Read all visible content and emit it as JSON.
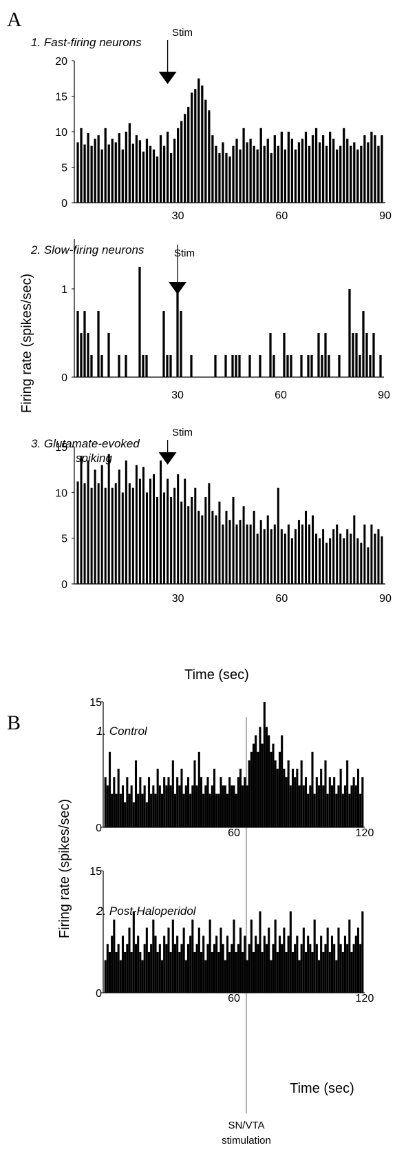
{
  "panels": {
    "a": {
      "letter": "A",
      "ylabel": "Firing rate (spikes/sec)",
      "xlabel": "Time (sec)",
      "stim_label": "Stim"
    },
    "b": {
      "letter": "B",
      "ylabel": "Firing rate (spikes/sec)",
      "xlabel": "Time (sec)",
      "stim_note_line1": "SN/VTA",
      "stim_note_line2": "stimulation"
    }
  },
  "chart_data": [
    {
      "type": "bar",
      "title": "1. Fast-firing neurons",
      "annotation": "Stim",
      "xlim": [
        0,
        90
      ],
      "ylim": [
        0,
        20
      ],
      "xticks": [
        "30",
        "60",
        "90"
      ],
      "yticks": [
        "0",
        "5",
        "10",
        "15",
        "20"
      ],
      "stim_x": 27,
      "x": [
        1,
        2,
        3,
        4,
        5,
        6,
        7,
        8,
        9,
        10,
        11,
        12,
        13,
        14,
        15,
        16,
        17,
        18,
        19,
        20,
        21,
        22,
        23,
        24,
        25,
        26,
        27,
        28,
        29,
        30,
        31,
        32,
        33,
        34,
        35,
        36,
        37,
        38,
        39,
        40,
        41,
        42,
        43,
        44,
        45,
        46,
        47,
        48,
        49,
        50,
        51,
        52,
        53,
        54,
        55,
        56,
        57,
        58,
        59,
        60,
        61,
        62,
        63,
        64,
        65,
        66,
        67,
        68,
        69,
        70,
        71,
        72,
        73,
        74,
        75,
        76,
        77,
        78,
        79,
        80,
        81,
        82,
        83,
        84,
        85,
        86,
        87,
        88,
        89
      ],
      "values": [
        8.5,
        10.5,
        8.2,
        9.8,
        8.0,
        9.0,
        9.5,
        7.5,
        10.5,
        8.2,
        9.0,
        8.5,
        9.8,
        7.5,
        10.0,
        11.2,
        8.3,
        9.5,
        8.8,
        7.2,
        9.0,
        8.0,
        7.5,
        6.5,
        9.5,
        8.0,
        10.0,
        7.0,
        9.0,
        10.5,
        11.5,
        12.5,
        13.5,
        15.5,
        16.0,
        17.5,
        16.5,
        14.5,
        13.0,
        9.5,
        8.0,
        7.0,
        8.5,
        7.0,
        6.5,
        8.0,
        9.0,
        7.5,
        10.5,
        8.5,
        9.0,
        8.0,
        7.5,
        10.5,
        8.0,
        9.0,
        7.0,
        9.5,
        8.0,
        10.0,
        7.5,
        10.0,
        9.0,
        7.5,
        8.5,
        9.0,
        10.0,
        8.0,
        9.5,
        10.5,
        8.5,
        9.5,
        8.0,
        10.0,
        9.0,
        7.5,
        8.0,
        10.5,
        9.0,
        8.0,
        8.5,
        7.5,
        8.0,
        9.5,
        8.5,
        10.0,
        9.5,
        8.0,
        9.5
      ]
    },
    {
      "type": "bar",
      "title": "2. Slow-firing neurons",
      "annotation": "Stim",
      "xlim": [
        0,
        90
      ],
      "ylim": [
        0,
        1.5
      ],
      "xticks": [
        "30",
        "60",
        "90"
      ],
      "yticks": [
        "0",
        "1"
      ],
      "stim_x": 30,
      "x": [
        1,
        2,
        3,
        4,
        5,
        6,
        7,
        8,
        9,
        10,
        11,
        12,
        13,
        14,
        15,
        16,
        17,
        18,
        19,
        20,
        21,
        22,
        23,
        24,
        25,
        26,
        27,
        28,
        29,
        30,
        31,
        32,
        33,
        34,
        35,
        36,
        37,
        38,
        39,
        40,
        41,
        42,
        43,
        44,
        45,
        46,
        47,
        48,
        49,
        50,
        51,
        52,
        53,
        54,
        55,
        56,
        57,
        58,
        59,
        60,
        61,
        62,
        63,
        64,
        65,
        66,
        67,
        68,
        69,
        70,
        71,
        72,
        73,
        74,
        75,
        76,
        77,
        78,
        79,
        80,
        81,
        82,
        83,
        84,
        85,
        86,
        87,
        88,
        89
      ],
      "values": [
        0.75,
        0.5,
        0.75,
        0.5,
        0.25,
        0.0,
        0.75,
        0.25,
        0.0,
        0.5,
        0.0,
        0.0,
        0.25,
        0.0,
        0.25,
        0.0,
        0.0,
        0.0,
        1.25,
        0.25,
        0.25,
        0.0,
        0.0,
        0.0,
        0.0,
        0.75,
        0.25,
        0.25,
        0.0,
        1.0,
        0.75,
        0.0,
        0.0,
        0.25,
        0.0,
        0.0,
        0.0,
        0.0,
        0.0,
        0.0,
        0.25,
        0.0,
        0.0,
        0.25,
        0.0,
        0.25,
        0.25,
        0.25,
        0.0,
        0.0,
        0.25,
        0.0,
        0.0,
        0.25,
        0.0,
        0.0,
        0.5,
        0.25,
        0.0,
        0.0,
        0.5,
        0.25,
        0.25,
        0.0,
        0.0,
        0.25,
        0.0,
        0.25,
        0.25,
        0.0,
        0.5,
        0.25,
        0.5,
        0.25,
        0.0,
        0.0,
        0.25,
        0.0,
        0.0,
        1.0,
        0.5,
        0.5,
        0.25,
        0.75,
        0.5,
        0.25,
        0.5,
        0.0,
        0.25
      ]
    },
    {
      "type": "bar",
      "title": "3. Glutamate-evoked spiking",
      "annotation": "Stim",
      "xlim": [
        0,
        90
      ],
      "ylim": [
        0,
        15
      ],
      "xticks": [
        "30",
        "60",
        "90"
      ],
      "yticks": [
        "0",
        "5",
        "10",
        "15"
      ],
      "stim_x": 27,
      "x": [
        1,
        2,
        3,
        4,
        5,
        6,
        7,
        8,
        9,
        10,
        11,
        12,
        13,
        14,
        15,
        16,
        17,
        18,
        19,
        20,
        21,
        22,
        23,
        24,
        25,
        26,
        27,
        28,
        29,
        30,
        31,
        32,
        33,
        34,
        35,
        36,
        37,
        38,
        39,
        40,
        41,
        42,
        43,
        44,
        45,
        46,
        47,
        48,
        49,
        50,
        51,
        52,
        53,
        54,
        55,
        56,
        57,
        58,
        59,
        60,
        61,
        62,
        63,
        64,
        65,
        66,
        67,
        68,
        69,
        70,
        71,
        72,
        73,
        74,
        75,
        76,
        77,
        78,
        79,
        80,
        81,
        82,
        83,
        84,
        85,
        86,
        87,
        88,
        89
      ],
      "values": [
        11.2,
        14.0,
        11.0,
        13.5,
        10.5,
        12.5,
        11.0,
        13.0,
        10.5,
        14.2,
        10.5,
        11.0,
        12.5,
        10.0,
        13.5,
        11.0,
        10.5,
        13.0,
        11.5,
        12.8,
        10.0,
        11.5,
        12.0,
        9.5,
        13.5,
        10.0,
        11.5,
        9.5,
        10.5,
        12.0,
        9.0,
        11.5,
        8.5,
        9.5,
        10.5,
        8.0,
        7.5,
        9.5,
        11.0,
        8.0,
        7.5,
        9.0,
        6.5,
        8.0,
        7.0,
        9.5,
        6.5,
        7.0,
        8.5,
        6.5,
        6.5,
        8.0,
        5.5,
        7.0,
        6.0,
        7.5,
        6.0,
        6.5,
        10.5,
        6.0,
        5.5,
        6.5,
        5.0,
        6.0,
        7.0,
        6.5,
        8.0,
        6.5,
        7.5,
        5.5,
        5.0,
        6.0,
        4.5,
        5.0,
        6.0,
        6.5,
        5.5,
        5.0,
        6.0,
        5.5,
        7.5,
        5.0,
        4.5,
        6.5,
        4.0,
        6.5,
        5.5,
        6.0,
        5.2
      ]
    },
    {
      "type": "bar",
      "title": "1. Control",
      "xlim": [
        0,
        120
      ],
      "ylim": [
        0,
        15
      ],
      "xticks": [
        "60",
        "120"
      ],
      "yticks": [
        "0",
        "15"
      ],
      "stim_x": 60,
      "x": [
        1,
        2,
        3,
        4,
        5,
        6,
        7,
        8,
        9,
        10,
        11,
        12,
        13,
        14,
        15,
        16,
        17,
        18,
        19,
        20,
        21,
        22,
        23,
        24,
        25,
        26,
        27,
        28,
        29,
        30,
        31,
        32,
        33,
        34,
        35,
        36,
        37,
        38,
        39,
        40,
        41,
        42,
        43,
        44,
        45,
        46,
        47,
        48,
        49,
        50,
        51,
        52,
        53,
        54,
        55,
        56,
        57,
        58,
        59,
        60,
        61,
        62,
        63,
        64,
        65,
        66,
        67,
        68,
        69,
        70,
        71,
        72,
        73,
        74,
        75,
        76,
        77,
        78,
        79,
        80,
        81,
        82,
        83,
        84,
        85,
        86,
        87,
        88,
        89,
        90,
        91,
        92,
        93,
        94,
        95,
        96,
        97,
        98,
        99,
        100,
        101,
        102,
        103,
        104,
        105,
        106,
        107,
        108,
        109,
        110,
        111,
        112,
        113,
        114,
        115,
        116,
        117,
        118,
        119
      ],
      "values": [
        6,
        5,
        9,
        4,
        6,
        4,
        7,
        4,
        5,
        3,
        6,
        4,
        5,
        3,
        8,
        4,
        6,
        4,
        5,
        3,
        6,
        4,
        5,
        4,
        7,
        5,
        4,
        6,
        5,
        6,
        5,
        8,
        4,
        6,
        5,
        7,
        4,
        5,
        6,
        4,
        5,
        8,
        5,
        9,
        6,
        4,
        5,
        6,
        4,
        5,
        7,
        4,
        4,
        6,
        5,
        5,
        4,
        6,
        5,
        5,
        4,
        6,
        7,
        5,
        6,
        5,
        8,
        9,
        10,
        11,
        9,
        12,
        10,
        15,
        12,
        11,
        9,
        10,
        8,
        7,
        9,
        11,
        7,
        6,
        8,
        5,
        7,
        6,
        7,
        5,
        8,
        5,
        6,
        4,
        5,
        9,
        4,
        6,
        5,
        7,
        5,
        8,
        4,
        6,
        5,
        6,
        4,
        5,
        7,
        4,
        5,
        8,
        4,
        5,
        6,
        5,
        7,
        4,
        6
      ]
    },
    {
      "type": "bar",
      "title": "2. Post-Haloperidol",
      "xlim": [
        0,
        120
      ],
      "ylim": [
        0,
        15
      ],
      "xticks": [
        "60",
        "120"
      ],
      "yticks": [
        "0",
        "15"
      ],
      "stim_x": 60,
      "x": [
        1,
        2,
        3,
        4,
        5,
        6,
        7,
        8,
        9,
        10,
        11,
        12,
        13,
        14,
        15,
        16,
        17,
        18,
        19,
        20,
        21,
        22,
        23,
        24,
        25,
        26,
        27,
        28,
        29,
        30,
        31,
        32,
        33,
        34,
        35,
        36,
        37,
        38,
        39,
        40,
        41,
        42,
        43,
        44,
        45,
        46,
        47,
        48,
        49,
        50,
        51,
        52,
        53,
        54,
        55,
        56,
        57,
        58,
        59,
        60,
        61,
        62,
        63,
        64,
        65,
        66,
        67,
        68,
        69,
        70,
        71,
        72,
        73,
        74,
        75,
        76,
        77,
        78,
        79,
        80,
        81,
        82,
        83,
        84,
        85,
        86,
        87,
        88,
        89,
        90,
        91,
        92,
        93,
        94,
        95,
        96,
        97,
        98,
        99,
        100,
        101,
        102,
        103,
        104,
        105,
        106,
        107,
        108,
        109,
        110,
        111,
        112,
        113,
        114,
        115,
        116,
        117,
        118,
        119
      ],
      "values": [
        4,
        6,
        5,
        7,
        9,
        5,
        6,
        4,
        7,
        5,
        6,
        8,
        5,
        10,
        6,
        7,
        5,
        4,
        6,
        8,
        5,
        6,
        9,
        7,
        5,
        6,
        4,
        7,
        6,
        8,
        5,
        9,
        6,
        7,
        5,
        6,
        8,
        4,
        6,
        7,
        9,
        5,
        6,
        8,
        5,
        7,
        4,
        6,
        9,
        5,
        6,
        7,
        5,
        8,
        6,
        4,
        7,
        5,
        6,
        9,
        5,
        6,
        8,
        5,
        7,
        4,
        6,
        9,
        5,
        7,
        6,
        10,
        5,
        7,
        6,
        8,
        4,
        6,
        9,
        5,
        7,
        6,
        8,
        5,
        7,
        10,
        5,
        6,
        7,
        4,
        6,
        8,
        5,
        7,
        6,
        5,
        9,
        6,
        4,
        7,
        5,
        6,
        8,
        5,
        7,
        6,
        4,
        8,
        6,
        5,
        7,
        6,
        9,
        5,
        6,
        7,
        8,
        6,
        10
      ]
    }
  ]
}
